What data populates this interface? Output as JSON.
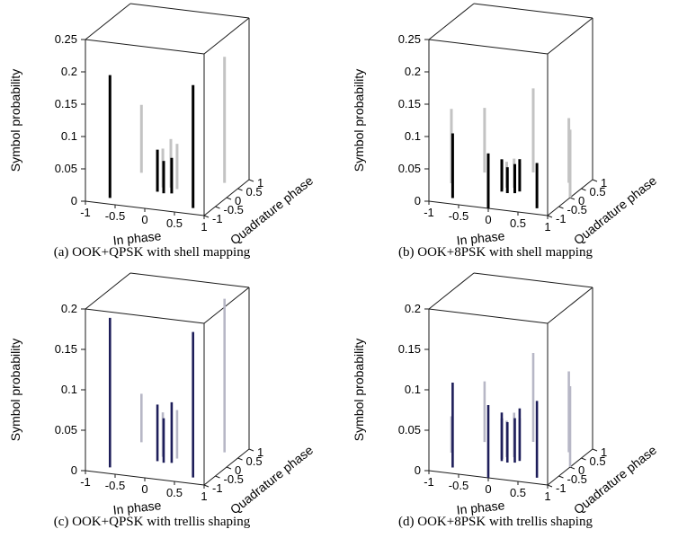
{
  "page": {
    "background": "#ffffff"
  },
  "chart_data": [
    {
      "type": "stem3d",
      "caption": "(a) OOK+QPSK with shell mapping",
      "xlabel": "In phase",
      "ylabel": "Quadrature phase",
      "zlabel": "Symbol probability",
      "xlim": [
        -1,
        1
      ],
      "ylim": [
        -1,
        1
      ],
      "zlim": [
        0,
        0.25
      ],
      "xticks": [
        -1,
        -0.5,
        0,
        0.5,
        1
      ],
      "yticks": [
        -1,
        -0.5,
        0,
        0.5,
        1
      ],
      "zticks": [
        0,
        0.05,
        0.1,
        0.15,
        0.2,
        0.25
      ],
      "stem_width": 3,
      "series": [
        {
          "name": "front symbols (dark)",
          "color": "#000000",
          "points": [
            [
              -0.7,
              -0.7,
              0.19
            ],
            [
              0.7,
              -0.7,
              0.19
            ],
            [
              -0.12,
              -0.12,
              0.065
            ],
            [
              0,
              -0.16,
              0.05
            ],
            [
              0.12,
              -0.12,
              0.055
            ]
          ]
        },
        {
          "name": "back symbols (gray)",
          "color": "#c3c3c3",
          "points": [
            [
              -0.7,
              0.7,
              0.105
            ],
            [
              0.7,
              0.7,
              0.195
            ],
            [
              -0.12,
              0.12,
              0.06
            ],
            [
              0,
              0.16,
              0.075
            ],
            [
              0.12,
              0.12,
              0.07
            ]
          ]
        }
      ]
    },
    {
      "type": "stem3d",
      "caption": "(b) OOK+8PSK with shell mapping",
      "xlabel": "In phase",
      "ylabel": "Quadrature phase",
      "zlabel": "Symbol probability",
      "xlim": [
        -1,
        1
      ],
      "ylim": [
        -1,
        1
      ],
      "zlim": [
        0,
        0.25
      ],
      "xticks": [
        -1,
        -0.5,
        0,
        0.5,
        1
      ],
      "yticks": [
        -1,
        -0.5,
        0,
        0.5,
        1
      ],
      "zticks": [
        0,
        0.05,
        0.1,
        0.15,
        0.2,
        0.25
      ],
      "stem_width": 3,
      "series": [
        {
          "name": "front symbols (dark)",
          "color": "#000000",
          "points": [
            [
              -0.71,
              -0.71,
              0.1
            ],
            [
              0,
              -1,
              0.085
            ],
            [
              0.71,
              -0.71,
              0.07
            ],
            [
              0.15,
              0,
              0.05
            ],
            [
              0.11,
              -0.11,
              0.045
            ],
            [
              0,
              -0.15,
              0.04
            ],
            [
              -0.11,
              -0.11,
              0.05
            ],
            [
              -0.15,
              0,
              0.045
            ]
          ]
        },
        {
          "name": "back symbols (gray)",
          "color": "#c3c3c3",
          "points": [
            [
              -1,
              0,
              0.115
            ],
            [
              1,
              0,
              0.105
            ],
            [
              -0.71,
              0.71,
              0.1
            ],
            [
              0,
              1,
              0.13
            ],
            [
              0.71,
              0.71,
              0.1
            ],
            [
              -0.11,
              0.11,
              0.04
            ],
            [
              0,
              0.15,
              0.045
            ],
            [
              0.11,
              0.11,
              0.04
            ]
          ]
        }
      ]
    },
    {
      "type": "stem3d",
      "caption": "(c) OOK+QPSK with trellis shaping",
      "xlabel": "In phase",
      "ylabel": "Quadrature phase",
      "zlabel": "Symbol probability",
      "xlim": [
        -1,
        1
      ],
      "ylim": [
        -1,
        1
      ],
      "zlim": [
        0,
        0.2
      ],
      "xticks": [
        -1,
        -0.5,
        0,
        0.5,
        1
      ],
      "yticks": [
        -1,
        -0.5,
        0,
        0.5,
        1
      ],
      "zticks": [
        0,
        0.05,
        0.1,
        0.15,
        0.2
      ],
      "stem_width": 2.6,
      "series": [
        {
          "name": "front symbols (navy)",
          "color": "#1e1e5a",
          "points": [
            [
              -0.7,
              -0.7,
              0.185
            ],
            [
              0.7,
              -0.7,
              0.18
            ],
            [
              -0.12,
              -0.12,
              0.07
            ],
            [
              0,
              -0.16,
              0.055
            ],
            [
              0.12,
              -0.12,
              0.075
            ]
          ]
        },
        {
          "name": "back symbols (gray)",
          "color": "#b7b7c6",
          "points": [
            [
              -0.7,
              0.7,
              0.06
            ],
            [
              0.7,
              0.7,
              0.19
            ],
            [
              -0.12,
              0.12,
              0.055
            ],
            [
              0.12,
              0.12,
              0.06
            ]
          ]
        }
      ]
    },
    {
      "type": "stem3d",
      "caption": "(d) OOK+8PSK with trellis shaping",
      "xlabel": "In phase",
      "ylabel": "Quadrature phase",
      "zlabel": "Symbol probability",
      "xlim": [
        -1,
        1
      ],
      "ylim": [
        -1,
        1
      ],
      "zlim": [
        0,
        0.2
      ],
      "xticks": [
        -1,
        -0.5,
        0,
        0.5,
        1
      ],
      "yticks": [
        -1,
        -0.5,
        0,
        0.5,
        1
      ],
      "zticks": [
        0,
        0.05,
        0.1,
        0.15,
        0.2
      ],
      "stem_width": 2.6,
      "series": [
        {
          "name": "front symbols (navy)",
          "color": "#1e1e5a",
          "points": [
            [
              -0.71,
              -0.71,
              0.105
            ],
            [
              0,
              -1,
              0.09
            ],
            [
              0.71,
              -0.71,
              0.095
            ],
            [
              0.15,
              0,
              0.065
            ],
            [
              0.11,
              -0.11,
              0.055
            ],
            [
              0,
              -0.15,
              0.05
            ],
            [
              -0.11,
              -0.11,
              0.06
            ],
            [
              -0.15,
              0,
              0.05
            ]
          ]
        },
        {
          "name": "back symbols (gray)",
          "color": "#b7b7c6",
          "points": [
            [
              -1,
              0,
              0.045
            ],
            [
              1,
              0,
              0.1
            ],
            [
              -0.71,
              0.71,
              0.075
            ],
            [
              0,
              1,
              0.11
            ],
            [
              0.71,
              0.71,
              0.1
            ],
            [
              -0.11,
              0.11,
              0.045
            ],
            [
              0,
              0.15,
              0.055
            ],
            [
              0.11,
              0.11,
              0.05
            ]
          ]
        }
      ]
    }
  ]
}
